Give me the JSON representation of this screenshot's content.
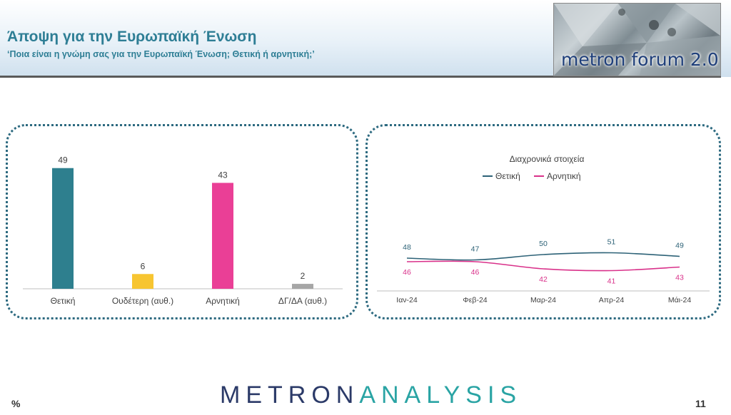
{
  "header": {
    "title": "Άποψη για την Ευρωπαϊκή Ένωση",
    "subtitle": "‘Ποια είναι η γνώμη σας για την Ευρωπαϊκή Ένωση; Θετική ή αρνητική;’"
  },
  "logo": {
    "text": "metron forum 2.0"
  },
  "footer": {
    "brand_part1": "METRON",
    "brand_part2": "ANALYSIS",
    "percent_symbol": "%",
    "page_number": "11"
  },
  "colors": {
    "accent": "#2e7e95",
    "positive": "#2e7f8e",
    "neutral": "#f7c531",
    "negative": "#ea3f96",
    "dk": "#a6a6a6",
    "trend_positive": "#2d6277",
    "trend_negative": "#d9318a"
  },
  "chart_data": [
    {
      "type": "bar",
      "categories": [
        "Θετική",
        "Ουδέτερη (αυθ.)",
        "Αρνητική",
        "ΔΓ/ΔΑ (αυθ.)"
      ],
      "values": [
        49,
        6,
        43,
        2
      ],
      "colors": [
        "#2e7f8e",
        "#f7c531",
        "#ea3f96",
        "#a6a6a6"
      ],
      "title": "",
      "ylim": [
        0,
        55
      ],
      "grid": false
    },
    {
      "type": "line",
      "title": "Διαχρονικά στοιχεία",
      "categories": [
        "Ιαν-24",
        "Φεβ-24",
        "Μαρ-24",
        "Απρ-24",
        "Μάι-24"
      ],
      "series": [
        {
          "name": "Θετική",
          "values": [
            48,
            47,
            50,
            51,
            49
          ],
          "color": "#2d6277"
        },
        {
          "name": "Αρνητική",
          "values": [
            46,
            46,
            42,
            41,
            43
          ],
          "color": "#d9318a"
        }
      ],
      "legend": "top",
      "ylim": [
        0,
        100
      ],
      "grid": false
    }
  ]
}
